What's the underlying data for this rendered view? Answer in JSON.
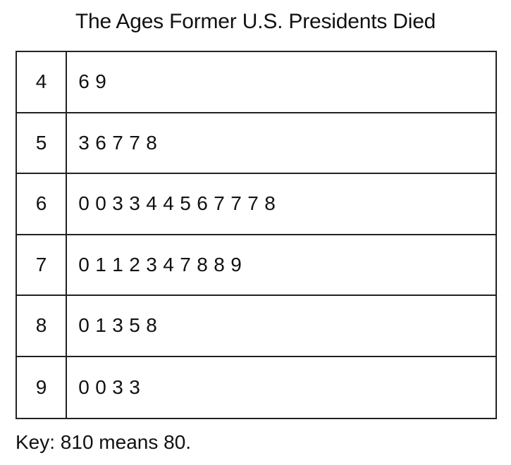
{
  "chart_data": {
    "type": "table",
    "title": "The Ages Former U.S. Presidents Died",
    "rows": [
      {
        "stem": "4",
        "leaves": [
          "6",
          "9"
        ]
      },
      {
        "stem": "5",
        "leaves": [
          "3",
          "6",
          "7",
          "7",
          "8"
        ]
      },
      {
        "stem": "6",
        "leaves": [
          "0",
          "0",
          "3",
          "3",
          "4",
          "4",
          "5",
          "6",
          "7",
          "7",
          "7",
          "8"
        ]
      },
      {
        "stem": "7",
        "leaves": [
          "0",
          "1",
          "1",
          "2",
          "3",
          "4",
          "7",
          "8",
          "8",
          "9"
        ]
      },
      {
        "stem": "8",
        "leaves": [
          "0",
          "1",
          "3",
          "5",
          "8"
        ]
      },
      {
        "stem": "9",
        "leaves": [
          "0",
          "0",
          "3",
          "3"
        ]
      }
    ],
    "key": "Key: 810 means 80."
  }
}
